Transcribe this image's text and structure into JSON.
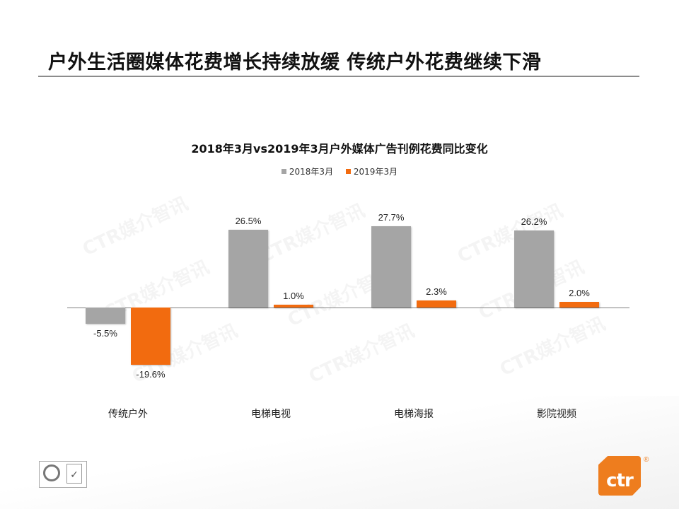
{
  "slide": {
    "title": "户外生活圈媒体花费增长持续放缓 传统户外花费继续下滑",
    "watermark": "CTR媒介智讯",
    "logo_text": "ctr",
    "logo_reg": "®"
  },
  "colors": {
    "series_2018": "#a5a5a5",
    "series_2019": "#f26b0f",
    "brand": "#ee7d1e"
  },
  "chart_data": {
    "type": "bar",
    "title": "2018年3月vs2019年3月户外媒体广告刊例花费同比变化",
    "categories": [
      "传统户外",
      "电梯电视",
      "电梯海报",
      "影院视频"
    ],
    "series": [
      {
        "name": "2018年3月",
        "values": [
          -5.5,
          26.5,
          27.7,
          26.2
        ],
        "labels": [
          "-5.5%",
          "26.5%",
          "27.7%",
          "26.2%"
        ]
      },
      {
        "name": "2019年3月",
        "values": [
          -19.6,
          1.0,
          2.3,
          2.0
        ],
        "labels": [
          "-19.6%",
          "1.0%",
          "2.3%",
          "2.0%"
        ]
      }
    ],
    "xlabel": "",
    "ylabel": "",
    "ylim": [
      -25,
      35
    ],
    "grid": false,
    "legend_position": "top",
    "value_format": "percent"
  }
}
